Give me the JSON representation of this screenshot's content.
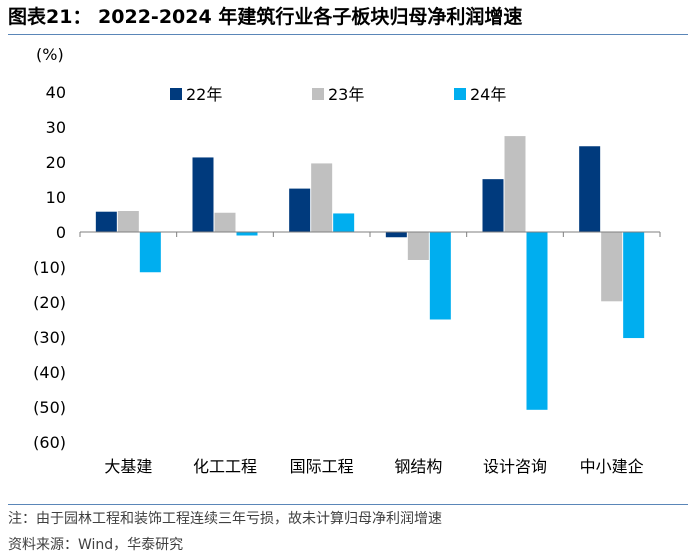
{
  "header": {
    "title": "图表21：  2022-2024 年建筑行业各子板块归母净利润增速"
  },
  "footer": {
    "note": "注：由于园林工程和装饰工程连续三年亏损，故未计算归母净利润增速",
    "source": "资料来源：Wind，华泰研究"
  },
  "chart_data": {
    "type": "bar",
    "title": "2022-2024 年建筑行业各子板块归母净利润增速",
    "ylabel": "(%)",
    "xlabel": "",
    "ylim": [
      -60,
      40
    ],
    "ytick_values": [
      40,
      30,
      20,
      10,
      0,
      -10,
      -20,
      -30,
      -40,
      -50,
      -60
    ],
    "ytick_labels": [
      "40",
      "30",
      "20",
      "10",
      "0",
      "(10)",
      "(20)",
      "(30)",
      "(40)",
      "(50)",
      "(60)"
    ],
    "categories": [
      "大基建",
      "化工工程",
      "国际工程",
      "钢结构",
      "设计咨询",
      "中小建企"
    ],
    "legend_position": "top",
    "series": [
      {
        "name": "22年",
        "color": "#003a7d",
        "values": [
          5.8,
          21.3,
          12.4,
          -1.5,
          15.1,
          24.5
        ]
      },
      {
        "name": "23年",
        "color": "#c0c0c0",
        "values": [
          6.0,
          5.5,
          19.6,
          -8.0,
          27.4,
          -19.8
        ]
      },
      {
        "name": "24年",
        "color": "#00aeef",
        "values": [
          -11.5,
          -1.0,
          5.3,
          -25.0,
          -50.8,
          -30.3
        ]
      }
    ]
  }
}
